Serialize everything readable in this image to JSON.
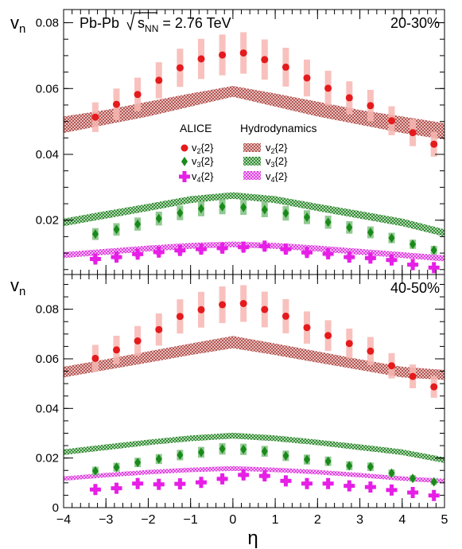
{
  "chart_data": [
    {
      "type": "scatter",
      "panel_label": "20-30%",
      "system_label": {
        "pre": "Pb-Pb ",
        "sqrt_s": "s",
        "sub": "NN",
        "post": " = 2.76 TeV"
      },
      "ylabel": "v",
      "ylabel_sub": "n",
      "ylim": [
        0.0035,
        0.084
      ],
      "yticks": [
        0.02,
        0.04,
        0.06,
        0.08
      ],
      "ytick_labels": [
        "0.02",
        "0.04",
        "0.06",
        "0.08"
      ],
      "legend": {
        "data_header": "ALICE",
        "model_header": "Hydrodynamics",
        "entries": [
          {
            "base": "v",
            "sub": "2",
            "sup": "{2}"
          },
          {
            "base": "v",
            "sub": "3",
            "sup": "{2}"
          },
          {
            "base": "v",
            "sub": "4",
            "sup": "{2}"
          }
        ]
      },
      "eta": [
        -3.25,
        -2.75,
        -2.25,
        -1.75,
        -1.25,
        -0.75,
        -0.25,
        0.25,
        0.75,
        1.25,
        1.75,
        2.25,
        2.75,
        3.25,
        3.75,
        4.25,
        4.75
      ],
      "series": [
        {
          "name": "v2{2} ALICE",
          "marker": "circle",
          "color": "#e41a1c",
          "syst_color": "#f7b6b2",
          "values": [
            0.0513,
            0.0552,
            0.0582,
            0.0625,
            0.0663,
            0.069,
            0.0702,
            0.0708,
            0.0688,
            0.0665,
            0.0632,
            0.0601,
            0.0572,
            0.0548,
            0.0502,
            0.0466,
            0.0431
          ],
          "syst": [
            0.0045,
            0.0048,
            0.0051,
            0.0055,
            0.0058,
            0.0061,
            0.0062,
            0.0063,
            0.0061,
            0.0059,
            0.0056,
            0.0053,
            0.005,
            0.0048,
            0.0044,
            0.0041,
            0.0038
          ]
        },
        {
          "name": "v3{2} ALICE",
          "marker": "diamond",
          "color": "#1a8a1a",
          "syst_color": "#7fbf7f",
          "values": [
            0.0158,
            0.0172,
            0.0188,
            0.0205,
            0.0222,
            0.0235,
            0.0241,
            0.0239,
            0.0232,
            0.0221,
            0.0209,
            0.0194,
            0.0178,
            0.0163,
            0.0146,
            0.0127,
            0.0109
          ],
          "syst": [
            0.0018,
            0.0019,
            0.002,
            0.0021,
            0.0022,
            0.0023,
            0.0023,
            0.0023,
            0.0023,
            0.0022,
            0.0021,
            0.002,
            0.0019,
            0.0018,
            0.0016,
            0.0014,
            0.0013
          ]
        },
        {
          "name": "v4{2} ALICE",
          "marker": "cross",
          "color": "#e61ee6",
          "syst_color": "#f2a6f2",
          "values": [
            0.0082,
            0.0088,
            0.0097,
            0.0103,
            0.0108,
            0.0112,
            0.0115,
            0.0118,
            0.0121,
            0.0112,
            0.0102,
            0.0098,
            0.0088,
            0.0085,
            0.0079,
            0.0065,
            0.0056
          ],
          "syst": [
            0.0009,
            0.0009,
            0.001,
            0.001,
            0.0011,
            0.0011,
            0.0011,
            0.0012,
            0.0012,
            0.0011,
            0.001,
            0.001,
            0.0009,
            0.0009,
            0.0008,
            0.0007,
            0.0006
          ]
        }
      ],
      "hydro_bands": [
        {
          "name": "v2{2} Hydrodynamics",
          "color": "#b5524e",
          "x": [
            -4,
            -3,
            -2,
            -1,
            0,
            1,
            2,
            3,
            4,
            5
          ],
          "lower": [
            0.0465,
            0.049,
            0.0515,
            0.0545,
            0.0575,
            0.0545,
            0.0515,
            0.049,
            0.0465,
            0.0445
          ],
          "upper": [
            0.0515,
            0.0535,
            0.056,
            0.0585,
            0.0608,
            0.0585,
            0.056,
            0.0535,
            0.0515,
            0.0495
          ]
        },
        {
          "name": "v3{2} Hydrodynamics",
          "color": "#2d8a2d",
          "x": [
            -4,
            -3,
            -2,
            -1,
            0,
            1,
            2,
            3,
            4,
            5
          ],
          "lower": [
            0.0182,
            0.0205,
            0.0228,
            0.0252,
            0.0265,
            0.0252,
            0.0228,
            0.0205,
            0.0182,
            0.015
          ],
          "upper": [
            0.0205,
            0.0228,
            0.025,
            0.0273,
            0.0285,
            0.0273,
            0.025,
            0.0228,
            0.0205,
            0.0172
          ]
        },
        {
          "name": "v4{2} Hydrodynamics",
          "color": "#e03ce0",
          "x": [
            -4,
            -3,
            -2,
            -1,
            0,
            1,
            2,
            3,
            4,
            5
          ],
          "lower": [
            0.0085,
            0.0095,
            0.0105,
            0.0113,
            0.0118,
            0.0113,
            0.0105,
            0.0095,
            0.0085,
            0.0075
          ],
          "upper": [
            0.0103,
            0.0113,
            0.0123,
            0.0131,
            0.0135,
            0.0131,
            0.0123,
            0.0113,
            0.0103,
            0.0093
          ]
        }
      ]
    },
    {
      "type": "scatter",
      "panel_label": "40-50%",
      "ylabel": "v",
      "ylabel_sub": "n",
      "ylim": [
        0.0,
        0.094
      ],
      "yticks": [
        0.0,
        0.02,
        0.04,
        0.06,
        0.08
      ],
      "ytick_labels": [
        "0",
        "0.02",
        "0.04",
        "0.06",
        "0.08"
      ],
      "xlabel": "η",
      "xlim": [
        -4,
        5
      ],
      "xticks": [
        -4,
        -3,
        -2,
        -1,
        0,
        1,
        2,
        3,
        4,
        5
      ],
      "xtick_labels": [
        "−4",
        "−3",
        "−2",
        "−1",
        "0",
        "1",
        "2",
        "3",
        "4",
        "5"
      ],
      "eta": [
        -3.25,
        -2.75,
        -2.25,
        -1.75,
        -1.25,
        -0.75,
        -0.25,
        0.25,
        0.75,
        1.25,
        1.75,
        2.25,
        2.75,
        3.25,
        3.75,
        4.25,
        4.75
      ],
      "series": [
        {
          "name": "v2{2} ALICE",
          "marker": "circle",
          "color": "#e41a1c",
          "syst_color": "#f7b6b2",
          "values": [
            0.0602,
            0.0636,
            0.0672,
            0.0718,
            0.0771,
            0.0798,
            0.0818,
            0.0823,
            0.0799,
            0.0772,
            0.0726,
            0.0694,
            0.0662,
            0.0631,
            0.0572,
            0.0529,
            0.0487
          ],
          "syst": [
            0.0054,
            0.0057,
            0.006,
            0.0065,
            0.0069,
            0.0072,
            0.0074,
            0.0074,
            0.0072,
            0.0069,
            0.0065,
            0.0062,
            0.006,
            0.0057,
            0.0051,
            0.0048,
            0.0044
          ]
        },
        {
          "name": "v3{2} ALICE",
          "marker": "diamond",
          "color": "#1a8a1a",
          "syst_color": "#7fbf7f",
          "values": [
            0.0148,
            0.0163,
            0.0182,
            0.0196,
            0.0212,
            0.0223,
            0.0237,
            0.0235,
            0.0227,
            0.0209,
            0.0194,
            0.0187,
            0.0169,
            0.0165,
            0.0139,
            0.0118,
            0.0104
          ],
          "syst": [
            0.0017,
            0.0018,
            0.0019,
            0.002,
            0.0021,
            0.0022,
            0.0023,
            0.0023,
            0.0022,
            0.0021,
            0.002,
            0.0019,
            0.0018,
            0.0017,
            0.0015,
            0.0013,
            0.0012
          ]
        },
        {
          "name": "v4{2} ALICE",
          "marker": "cross",
          "color": "#e61ee6",
          "syst_color": "#f2a6f2",
          "values": [
            0.0073,
            0.0078,
            0.0097,
            0.0094,
            0.0096,
            0.0102,
            0.0116,
            0.0132,
            0.0128,
            0.0108,
            0.0097,
            0.0097,
            0.0088,
            0.0083,
            0.0071,
            0.0061,
            0.0049
          ],
          "syst": [
            0.0008,
            0.0008,
            0.0009,
            0.0009,
            0.0009,
            0.001,
            0.0011,
            0.0012,
            0.0012,
            0.001,
            0.0009,
            0.0009,
            0.0009,
            0.0008,
            0.0007,
            0.0006,
            0.0006
          ]
        }
      ],
      "hydro_bands": [
        {
          "name": "v2{2} Hydrodynamics",
          "color": "#b5524e",
          "x": [
            -4,
            -3,
            -2,
            -1,
            0,
            1,
            2,
            3,
            4,
            5
          ],
          "lower": [
            0.0525,
            0.0555,
            0.0585,
            0.0615,
            0.0643,
            0.0615,
            0.0585,
            0.0555,
            0.0525,
            0.0515
          ],
          "upper": [
            0.0568,
            0.0598,
            0.063,
            0.0662,
            0.0692,
            0.0662,
            0.063,
            0.0598,
            0.0568,
            0.0555
          ]
        },
        {
          "name": "v3{2} Hydrodynamics",
          "color": "#2d8a2d",
          "x": [
            -4,
            -3,
            -2,
            -1,
            0,
            1,
            2,
            3,
            4,
            5
          ],
          "lower": [
            0.0212,
            0.0232,
            0.0252,
            0.0268,
            0.0278,
            0.0268,
            0.0252,
            0.0232,
            0.0212,
            0.018
          ],
          "upper": [
            0.0235,
            0.0255,
            0.0274,
            0.0291,
            0.0302,
            0.0291,
            0.0274,
            0.0255,
            0.0235,
            0.0203
          ]
        },
        {
          "name": "v4{2} Hydrodynamics",
          "color": "#e03ce0",
          "x": [
            -4,
            -3,
            -2,
            -1,
            0,
            1,
            2,
            3,
            4,
            5
          ],
          "lower": [
            0.0108,
            0.0122,
            0.0134,
            0.0143,
            0.0148,
            0.0143,
            0.0134,
            0.0122,
            0.0108,
            0.0098
          ],
          "upper": [
            0.0126,
            0.014,
            0.0152,
            0.0161,
            0.0167,
            0.0161,
            0.0152,
            0.014,
            0.0126,
            0.0116
          ]
        }
      ]
    }
  ]
}
